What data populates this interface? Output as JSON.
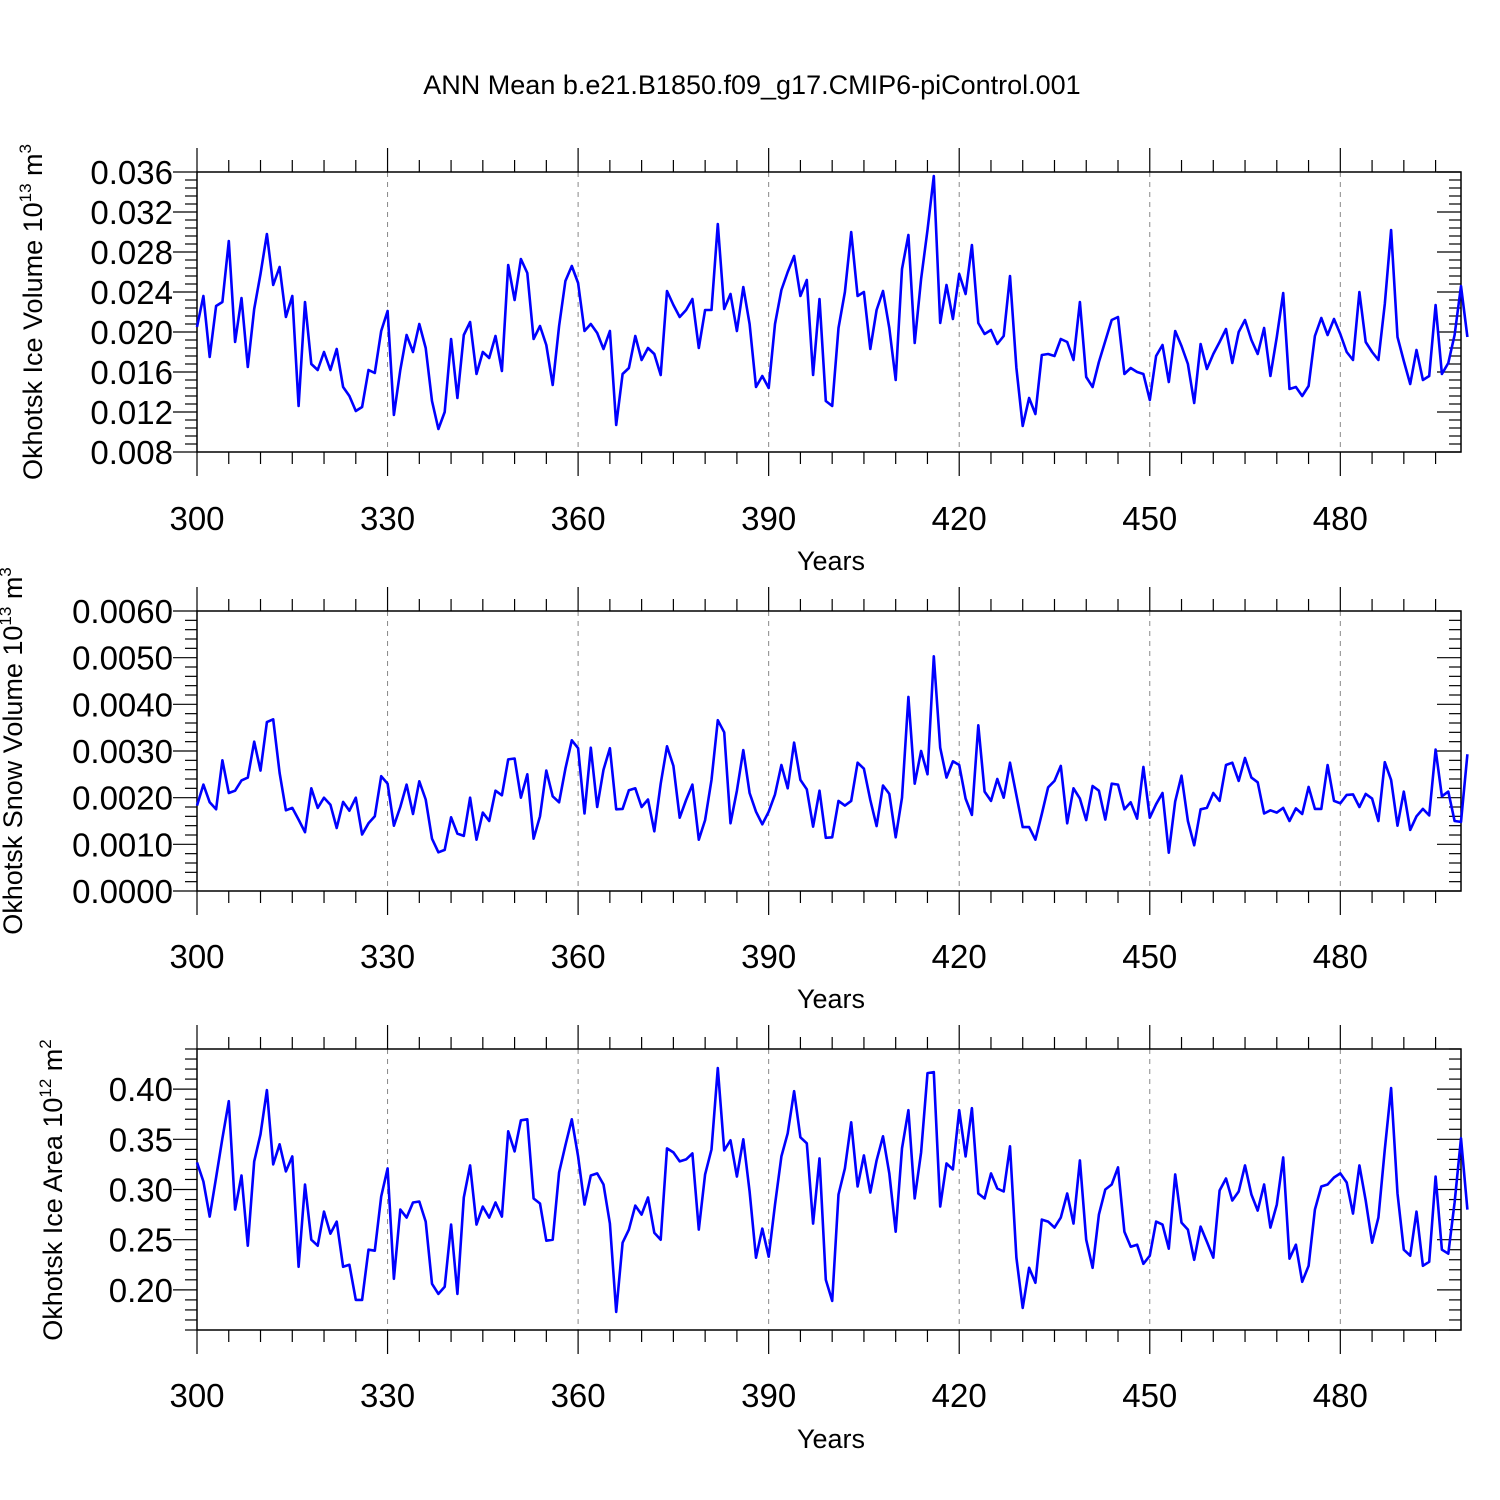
{
  "title": "ANN Mean b.e21.B1850.f09_g17.CMIP6-piControl.001",
  "colors": {
    "series": "#0000ff",
    "axis": "#000000",
    "grid": "#888888"
  },
  "chart_data": [
    {
      "type": "line",
      "ylabel": {
        "main": "Okhotsk Ice Volume 10",
        "exp": "13",
        "after": " m",
        "unit_exp": "3"
      },
      "xlabel": "Years",
      "xlim": [
        300,
        499
      ],
      "ylim": [
        0.008,
        0.036
      ],
      "xticks": [
        300,
        330,
        360,
        390,
        420,
        450,
        480
      ],
      "yticks": [
        "0.008",
        "0.012",
        "0.016",
        "0.020",
        "0.024",
        "0.028",
        "0.032",
        "0.036"
      ],
      "x_start": 300,
      "series": [
        {
          "name": "Okhotsk Ice Volume",
          "values": [
            0.0205,
            0.0236,
            0.0175,
            0.0226,
            0.023,
            0.0291,
            0.019,
            0.0234,
            0.0165,
            0.0223,
            0.0258,
            0.0298,
            0.0247,
            0.0265,
            0.0215,
            0.0236,
            0.0126,
            0.023,
            0.0168,
            0.0162,
            0.018,
            0.0162,
            0.0183,
            0.0145,
            0.0136,
            0.0121,
            0.0125,
            0.0162,
            0.0159,
            0.0201,
            0.0221,
            0.0117,
            0.0162,
            0.0197,
            0.018,
            0.0208,
            0.0184,
            0.0131,
            0.0103,
            0.012,
            0.0193,
            0.0134,
            0.0197,
            0.021,
            0.0158,
            0.018,
            0.0174,
            0.0196,
            0.0161,
            0.0267,
            0.0232,
            0.0273,
            0.0259,
            0.0193,
            0.0206,
            0.0187,
            0.0147,
            0.0206,
            0.0251,
            0.0266,
            0.0249,
            0.0201,
            0.0208,
            0.0199,
            0.0183,
            0.0201,
            0.0107,
            0.0158,
            0.0164,
            0.0196,
            0.0172,
            0.0184,
            0.0178,
            0.0157,
            0.0241,
            0.0227,
            0.0215,
            0.0222,
            0.0233,
            0.0184,
            0.0222,
            0.0222,
            0.0308,
            0.0223,
            0.0238,
            0.0201,
            0.0245,
            0.0208,
            0.0145,
            0.0156,
            0.0144,
            0.0208,
            0.0242,
            0.026,
            0.0276,
            0.0236,
            0.0252,
            0.0157,
            0.0233,
            0.0131,
            0.0126,
            0.0204,
            0.024,
            0.03,
            0.0236,
            0.024,
            0.0183,
            0.0222,
            0.0241,
            0.0204,
            0.0152,
            0.0263,
            0.0297,
            0.0189,
            0.0253,
            0.0302,
            0.0356,
            0.0209,
            0.0247,
            0.0213,
            0.0258,
            0.0238,
            0.0287,
            0.0209,
            0.0198,
            0.0202,
            0.0188,
            0.0196,
            0.0256,
            0.0164,
            0.0106,
            0.0134,
            0.0118,
            0.0177,
            0.0178,
            0.0176,
            0.0193,
            0.019,
            0.0172,
            0.023,
            0.0155,
            0.0145,
            0.017,
            0.0191,
            0.0212,
            0.0215,
            0.0158,
            0.0164,
            0.016,
            0.0158,
            0.0132,
            0.0176,
            0.0187,
            0.015,
            0.0201,
            0.0186,
            0.0168,
            0.0129,
            0.0188,
            0.0163,
            0.0178,
            0.019,
            0.0203,
            0.0169,
            0.02,
            0.0212,
            0.0192,
            0.0178,
            0.0204,
            0.0156,
            0.0195,
            0.0239,
            0.0143,
            0.0145,
            0.0136,
            0.0146,
            0.0196,
            0.0214,
            0.0197,
            0.0213,
            0.0198,
            0.018,
            0.0172,
            0.024,
            0.019,
            0.018,
            0.0172,
            0.0228,
            0.0302,
            0.0195,
            0.0171,
            0.0148,
            0.0182,
            0.0152,
            0.0156,
            0.0227,
            0.0158,
            0.0169,
            0.0197,
            0.0246,
            0.0195
          ]
        }
      ]
    },
    {
      "type": "line",
      "ylabel": {
        "main": "Okhotsk Snow Volume 10",
        "exp": "13",
        "after": " m",
        "unit_exp": "3"
      },
      "xlabel": "Years",
      "xlim": [
        300,
        499
      ],
      "ylim": [
        0.0,
        0.006
      ],
      "xticks": [
        300,
        330,
        360,
        390,
        420,
        450,
        480
      ],
      "yticks": [
        "0.0000",
        "0.0010",
        "0.0020",
        "0.0030",
        "0.0040",
        "0.0050",
        "0.0060"
      ],
      "x_start": 300,
      "series": [
        {
          "name": "Okhotsk Snow Volume",
          "values": [
            0.00183,
            0.00228,
            0.0019,
            0.00175,
            0.0028,
            0.0021,
            0.00215,
            0.00237,
            0.00243,
            0.0032,
            0.00258,
            0.00362,
            0.00368,
            0.00253,
            0.00173,
            0.00178,
            0.00153,
            0.00126,
            0.0022,
            0.00178,
            0.002,
            0.00185,
            0.00135,
            0.00191,
            0.00172,
            0.002,
            0.00121,
            0.00145,
            0.0016,
            0.00246,
            0.0023,
            0.0014,
            0.0018,
            0.00228,
            0.00165,
            0.00235,
            0.00196,
            0.00112,
            0.00083,
            0.00088,
            0.00158,
            0.00123,
            0.00118,
            0.002,
            0.0011,
            0.00168,
            0.0015,
            0.00215,
            0.00205,
            0.00282,
            0.00284,
            0.002,
            0.0025,
            0.00112,
            0.0016,
            0.00258,
            0.00203,
            0.0019,
            0.00262,
            0.00323,
            0.00306,
            0.00166,
            0.00307,
            0.0018,
            0.0026,
            0.00306,
            0.00175,
            0.00176,
            0.00216,
            0.0022,
            0.0018,
            0.00196,
            0.00128,
            0.0023,
            0.0031,
            0.00268,
            0.00157,
            0.00195,
            0.00228,
            0.0011,
            0.00152,
            0.00238,
            0.00366,
            0.0034,
            0.00145,
            0.00215,
            0.00302,
            0.0021,
            0.0017,
            0.00143,
            0.0017,
            0.00207,
            0.0027,
            0.0022,
            0.00318,
            0.00238,
            0.00218,
            0.00138,
            0.00215,
            0.00114,
            0.00115,
            0.00193,
            0.00183,
            0.00193,
            0.00275,
            0.00262,
            0.00195,
            0.00139,
            0.00226,
            0.00208,
            0.00115,
            0.002,
            0.00416,
            0.0023,
            0.003,
            0.0025,
            0.00503,
            0.00307,
            0.00243,
            0.00278,
            0.0027,
            0.00198,
            0.00163,
            0.00355,
            0.00213,
            0.00193,
            0.0024,
            0.002,
            0.00275,
            0.00205,
            0.00137,
            0.00137,
            0.0011,
            0.00165,
            0.00222,
            0.00236,
            0.00268,
            0.00145,
            0.0022,
            0.00198,
            0.00152,
            0.00225,
            0.00215,
            0.00153,
            0.0023,
            0.00228,
            0.00175,
            0.0019,
            0.00155,
            0.00266,
            0.00157,
            0.00186,
            0.0021,
            0.00082,
            0.00192,
            0.00247,
            0.0015,
            0.00098,
            0.00175,
            0.00178,
            0.0021,
            0.00193,
            0.0027,
            0.00275,
            0.00236,
            0.00285,
            0.00243,
            0.00233,
            0.00166,
            0.00173,
            0.00168,
            0.00178,
            0.0015,
            0.00177,
            0.00165,
            0.00223,
            0.00176,
            0.00176,
            0.0027,
            0.00193,
            0.00188,
            0.00206,
            0.00207,
            0.0018,
            0.00208,
            0.00198,
            0.0015,
            0.00276,
            0.00238,
            0.0014,
            0.00213,
            0.00131,
            0.0016,
            0.00176,
            0.00162,
            0.00303,
            0.00203,
            0.00213,
            0.0015,
            0.00148,
            0.00293
          ]
        }
      ]
    },
    {
      "type": "line",
      "ylabel": {
        "main": "Okhotsk Ice Area 10",
        "exp": "12",
        "after": " m",
        "unit_exp": "2"
      },
      "xlabel": "Years",
      "xlim": [
        300,
        499
      ],
      "ylim": [
        0.16,
        0.44
      ],
      "xticks": [
        300,
        330,
        360,
        390,
        420,
        450,
        480
      ],
      "yticks": [
        "0.20",
        "0.25",
        "0.30",
        "0.35",
        "0.40"
      ],
      "ytick_values": [
        0.2,
        0.25,
        0.3,
        0.35,
        0.4
      ],
      "x_start": 300,
      "series": [
        {
          "name": "Okhotsk Ice Area",
          "values": [
            0.327,
            0.308,
            0.273,
            0.312,
            0.351,
            0.388,
            0.28,
            0.314,
            0.244,
            0.328,
            0.355,
            0.399,
            0.325,
            0.345,
            0.318,
            0.333,
            0.223,
            0.305,
            0.25,
            0.244,
            0.278,
            0.256,
            0.268,
            0.223,
            0.225,
            0.19,
            0.19,
            0.24,
            0.239,
            0.293,
            0.321,
            0.211,
            0.28,
            0.272,
            0.287,
            0.288,
            0.268,
            0.206,
            0.196,
            0.203,
            0.265,
            0.196,
            0.292,
            0.324,
            0.265,
            0.283,
            0.272,
            0.287,
            0.273,
            0.358,
            0.338,
            0.369,
            0.37,
            0.291,
            0.286,
            0.249,
            0.25,
            0.317,
            0.344,
            0.37,
            0.333,
            0.285,
            0.314,
            0.316,
            0.305,
            0.266,
            0.178,
            0.247,
            0.26,
            0.284,
            0.275,
            0.292,
            0.257,
            0.25,
            0.341,
            0.337,
            0.328,
            0.33,
            0.336,
            0.26,
            0.315,
            0.34,
            0.421,
            0.339,
            0.349,
            0.313,
            0.35,
            0.298,
            0.232,
            0.261,
            0.233,
            0.285,
            0.333,
            0.356,
            0.398,
            0.352,
            0.346,
            0.266,
            0.331,
            0.21,
            0.189,
            0.295,
            0.321,
            0.367,
            0.303,
            0.334,
            0.297,
            0.329,
            0.353,
            0.316,
            0.258,
            0.341,
            0.379,
            0.291,
            0.337,
            0.416,
            0.417,
            0.283,
            0.326,
            0.32,
            0.379,
            0.333,
            0.381,
            0.296,
            0.291,
            0.316,
            0.301,
            0.298,
            0.343,
            0.232,
            0.182,
            0.222,
            0.207,
            0.27,
            0.268,
            0.262,
            0.272,
            0.296,
            0.266,
            0.329,
            0.25,
            0.222,
            0.275,
            0.3,
            0.305,
            0.322,
            0.258,
            0.243,
            0.245,
            0.226,
            0.234,
            0.268,
            0.265,
            0.241,
            0.315,
            0.267,
            0.26,
            0.23,
            0.263,
            0.248,
            0.232,
            0.299,
            0.311,
            0.289,
            0.298,
            0.324,
            0.295,
            0.279,
            0.305,
            0.262,
            0.285,
            0.332,
            0.231,
            0.245,
            0.208,
            0.224,
            0.28,
            0.303,
            0.305,
            0.312,
            0.316,
            0.307,
            0.276,
            0.324,
            0.289,
            0.247,
            0.272,
            0.34,
            0.401,
            0.296,
            0.24,
            0.234,
            0.278,
            0.224,
            0.228,
            0.313,
            0.24,
            0.236,
            0.287,
            0.351,
            0.28
          ]
        }
      ]
    }
  ]
}
